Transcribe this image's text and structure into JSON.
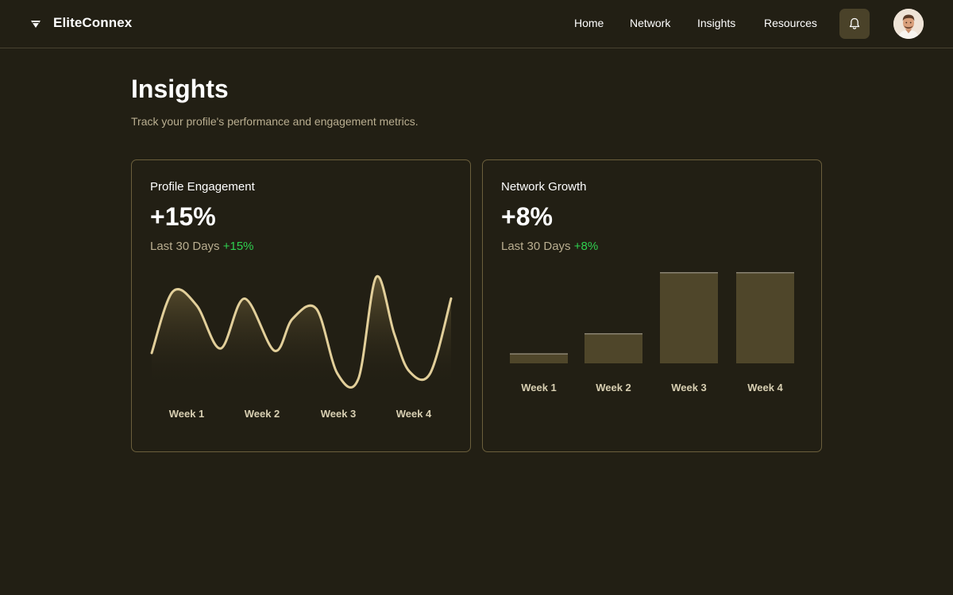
{
  "app": {
    "brand": "EliteConnex"
  },
  "nav": {
    "items": [
      "Home",
      "Network",
      "Insights",
      "Resources"
    ]
  },
  "icons": {
    "logo": "diamond-logo-icon",
    "notifications": "bell-icon",
    "avatar": "user-avatar"
  },
  "page": {
    "title": "Insights",
    "subtitle": "Track your profile's performance and engagement metrics."
  },
  "colors": {
    "background": "#221f14",
    "accent_line": "#e2cf9a",
    "bar_fill": "#4f462a",
    "positive": "#2fd04f",
    "card_border": "#6b5f3c"
  },
  "cards": [
    {
      "title": "Profile Engagement",
      "value": "+15%",
      "period": "Last 30 Days",
      "delta": "+15%"
    },
    {
      "title": "Network Growth",
      "value": "+8%",
      "period": "Last 30 Days",
      "delta": "+8%"
    }
  ],
  "chart_data": [
    {
      "type": "area",
      "title": "Profile Engagement",
      "categories": [
        "Week 1",
        "Week 2",
        "Week 3",
        "Week 4"
      ],
      "x": [
        0,
        0.07,
        0.15,
        0.23,
        0.31,
        0.41,
        0.47,
        0.55,
        0.62,
        0.69,
        0.75,
        0.81,
        0.86,
        0.93,
        1.0
      ],
      "values": [
        0.28,
        0.82,
        0.7,
        0.32,
        0.76,
        0.3,
        0.58,
        0.67,
        0.1,
        0.05,
        0.95,
        0.45,
        0.12,
        0.1,
        0.76
      ],
      "ylim": [
        0,
        1
      ]
    },
    {
      "type": "bar",
      "title": "Network Growth",
      "categories": [
        "Week 1",
        "Week 2",
        "Week 3",
        "Week 4"
      ],
      "values": [
        11,
        33,
        100,
        100
      ],
      "ylim": [
        0,
        100
      ]
    }
  ]
}
